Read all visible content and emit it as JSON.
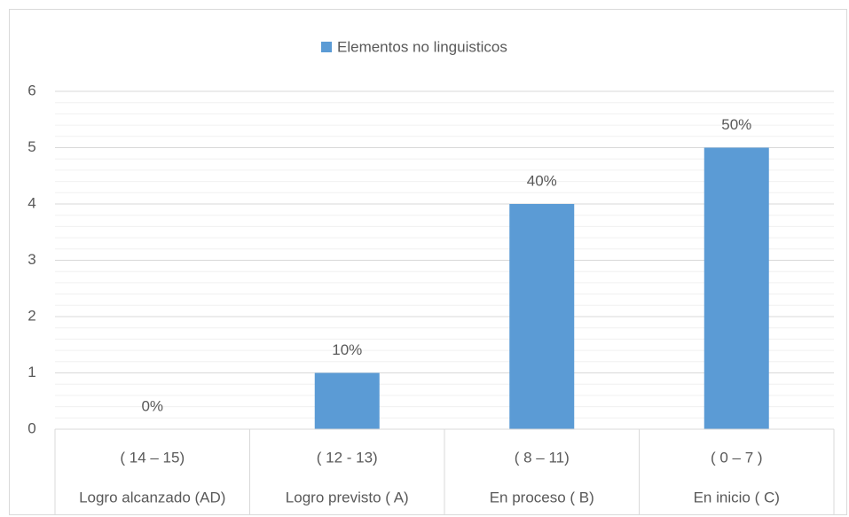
{
  "chart_data": {
    "type": "bar",
    "legend": "Elementos no linguisticos",
    "categories": [
      "( 14 – 15)",
      "( 12  - 13)",
      "( 8 – 11)",
      "( 0 – 7 )"
    ],
    "category_groups": [
      "Logro alcanzado (AD)",
      "Logro previsto ( A)",
      "En proceso ( B)",
      "En inicio ( C)"
    ],
    "values": [
      0,
      1,
      4,
      5
    ],
    "value_labels": [
      "0%",
      "10%",
      "40%",
      "50%"
    ],
    "color": "#5b9bd5",
    "ylim": [
      0,
      6
    ],
    "yticks": [
      0,
      1,
      2,
      3,
      4,
      5,
      6
    ],
    "grid": true,
    "minor_grid_step": 0.2
  }
}
